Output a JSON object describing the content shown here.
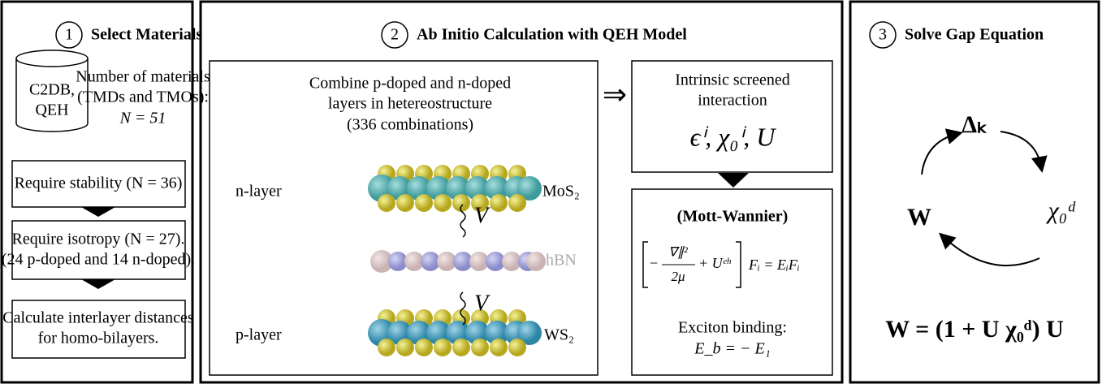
{
  "step1": {
    "number": "1",
    "title": "Select Materials",
    "database": [
      "C2DB,",
      "QEH"
    ],
    "count": [
      "Number of materials",
      "(TMDs and TMOs):",
      "N = 51"
    ],
    "filters": [
      [
        "Require stability (N = 36)"
      ],
      [
        "Require isotropy (N = 27).",
        "(24 p-doped and 14 n-doped)."
      ],
      [
        "Calculate interlayer distances",
        "for homo-bilayers."
      ]
    ]
  },
  "step2": {
    "number": "2",
    "title": "Ab Initio Calculation with QEH Model",
    "combine": [
      "Combine p-doped and n-doped",
      "layers in hetereostructure",
      "(336 combinations)"
    ],
    "layers": [
      {
        "side": "n-layer",
        "material": "MoS₂"
      },
      {
        "material": "hBN"
      },
      {
        "side": "p-layer",
        "material": "WS₂"
      }
    ],
    "coupling": [
      "V",
      "V"
    ],
    "arrow": "⇒",
    "screened": {
      "title": [
        "Intrinsic screened",
        "interaction"
      ],
      "formula": "ϵⁱ, χ₀ⁱ, U"
    },
    "mott": {
      "title": "(Mott-Wannier)",
      "equation": {
        "minus": "−",
        "numerator": "∇∥²",
        "denominator": "2μ",
        "plus": "+ Uᵉʰ",
        "rhs": "Fᵢ = EᵢFᵢ"
      },
      "binding": [
        "Exciton binding:",
        "E_b = − E₁"
      ]
    }
  },
  "step3": {
    "number": "3",
    "title": "Solve Gap Equation",
    "cycle": [
      "Δₖ",
      "χ₀ᵈ",
      "W"
    ],
    "equation": "W = (1 + U χ₀ᵈ) U"
  }
}
